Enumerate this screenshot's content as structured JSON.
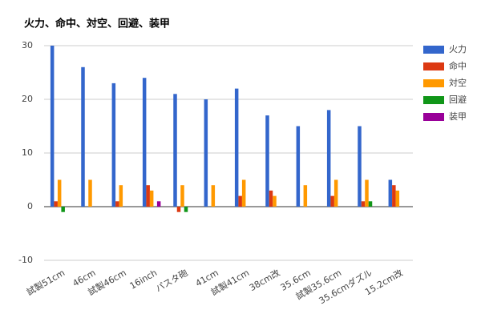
{
  "chart_data": {
    "type": "bar",
    "title": "火力、命中、対空、回避、装甲",
    "categories": [
      "試製51cm",
      "46cm",
      "試製46cm",
      "16inch",
      "パスタ砲",
      "41cm",
      "試製41cm",
      "38cm改",
      "35.6cm",
      "試製35.6cm",
      "35.6cmダズル",
      "15.2cm改"
    ],
    "series": [
      {
        "name": "火力",
        "color": "#3366cc",
        "values": [
          30,
          26,
          23,
          24,
          21,
          20,
          22,
          17,
          15,
          18,
          15,
          5
        ]
      },
      {
        "name": "命中",
        "color": "#dc3912",
        "values": [
          1,
          0,
          1,
          4,
          -1,
          0,
          2,
          3,
          0,
          2,
          1,
          4
        ]
      },
      {
        "name": "対空",
        "color": "#ff9900",
        "values": [
          5,
          5,
          4,
          3,
          4,
          4,
          5,
          2,
          4,
          5,
          5,
          3
        ]
      },
      {
        "name": "回避",
        "color": "#109618",
        "values": [
          -1,
          0,
          0,
          0,
          -1,
          0,
          0,
          0,
          0,
          0,
          1,
          0
        ]
      },
      {
        "name": "装甲",
        "color": "#990099",
        "values": [
          0,
          0,
          0,
          1,
          0,
          0,
          0,
          0,
          0,
          0,
          0,
          0
        ]
      }
    ],
    "ylim": [
      -10,
      30
    ],
    "yticks": [
      -10,
      0,
      10,
      20,
      30
    ],
    "grid": true,
    "legend": "right"
  }
}
